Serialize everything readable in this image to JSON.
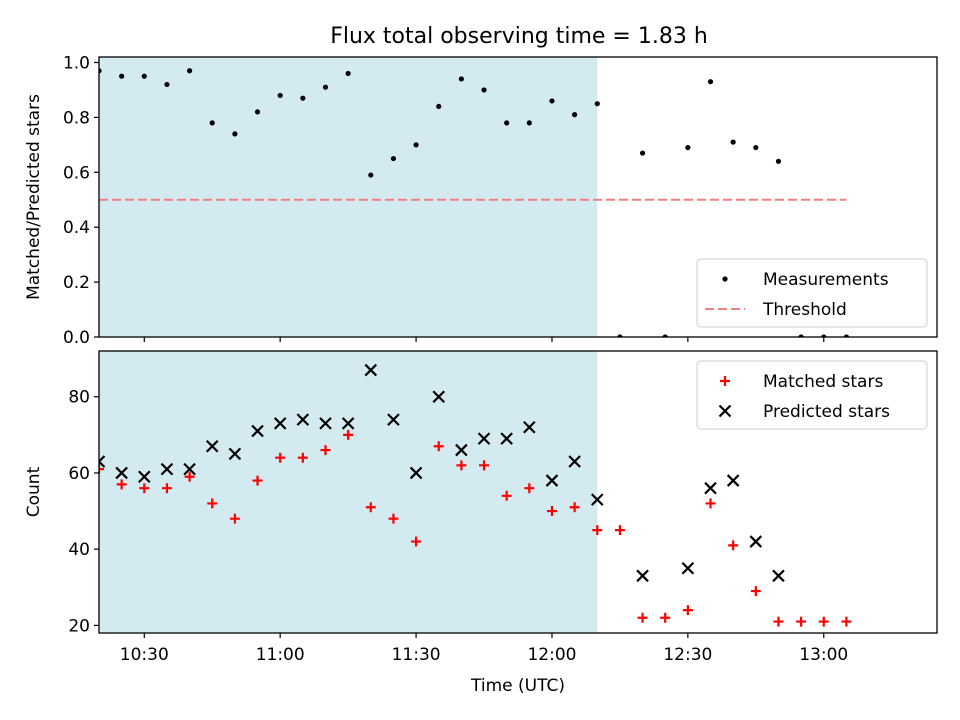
{
  "figure": {
    "title": "Flux total observing time = 1.83 h",
    "shade_color": "#d4eaf1"
  },
  "chart_data": [
    {
      "type": "scatter",
      "panel": "top",
      "ylabel": "Matched/Predicted stars",
      "xlabel": "",
      "xlim": [
        "10:20",
        "13:25"
      ],
      "ylim": [
        0,
        1.02
      ],
      "yticks": [
        0.0,
        0.2,
        0.4,
        0.6,
        0.8,
        1.0
      ],
      "ytick_labels": [
        "0.0",
        "0.2",
        "0.4",
        "0.6",
        "0.8",
        "1.0"
      ],
      "xticks": [
        "10:30",
        "11:00",
        "11:30",
        "12:00",
        "12:30",
        "13:00"
      ],
      "grid": false,
      "legend": "bottom-right",
      "shaded_span": [
        "10:20",
        "12:10"
      ],
      "series": [
        {
          "name": "Measurements",
          "marker": "dot",
          "color": "#000000",
          "points": [
            [
              "10:20",
              0.97
            ],
            [
              "10:25",
              0.95
            ],
            [
              "10:30",
              0.95
            ],
            [
              "10:35",
              0.92
            ],
            [
              "10:40",
              0.97
            ],
            [
              "10:45",
              0.78
            ],
            [
              "10:50",
              0.74
            ],
            [
              "10:55",
              0.82
            ],
            [
              "11:00",
              0.88
            ],
            [
              "11:05",
              0.87
            ],
            [
              "11:10",
              0.91
            ],
            [
              "11:15",
              0.96
            ],
            [
              "11:20",
              0.59
            ],
            [
              "11:25",
              0.65
            ],
            [
              "11:30",
              0.7
            ],
            [
              "11:35",
              0.84
            ],
            [
              "11:40",
              0.94
            ],
            [
              "11:45",
              0.9
            ],
            [
              "11:50",
              0.78
            ],
            [
              "11:55",
              0.78
            ],
            [
              "12:00",
              0.86
            ],
            [
              "12:05",
              0.81
            ],
            [
              "12:10",
              0.85
            ],
            [
              "12:15",
              0.0
            ],
            [
              "12:20",
              0.67
            ],
            [
              "12:25",
              0.0
            ],
            [
              "12:30",
              0.69
            ],
            [
              "12:35",
              0.93
            ],
            [
              "12:40",
              0.71
            ],
            [
              "12:45",
              0.69
            ],
            [
              "12:50",
              0.64
            ],
            [
              "12:55",
              0.0
            ],
            [
              "13:00",
              0.0
            ],
            [
              "13:05",
              0.0
            ]
          ]
        },
        {
          "name": "Threshold",
          "type": "line",
          "style": "dashed",
          "color": "#f08080",
          "points": [
            [
              "10:20",
              0.5
            ],
            [
              "13:05",
              0.5
            ]
          ]
        }
      ]
    },
    {
      "type": "scatter",
      "panel": "bottom",
      "xlabel": "Time (UTC)",
      "ylabel": "Count",
      "xlim": [
        "10:20",
        "13:25"
      ],
      "ylim": [
        18,
        92
      ],
      "yticks": [
        20,
        40,
        60,
        80
      ],
      "ytick_labels": [
        "20",
        "40",
        "60",
        "80"
      ],
      "xticks": [
        "10:30",
        "11:00",
        "11:30",
        "12:00",
        "12:30",
        "13:00"
      ],
      "xtick_labels": [
        "10:30",
        "11:00",
        "11:30",
        "12:00",
        "12:30",
        "13:00"
      ],
      "grid": false,
      "legend": "top-right",
      "shaded_span": [
        "10:20",
        "12:10"
      ],
      "series": [
        {
          "name": "Matched stars",
          "marker": "plus",
          "color": "#ff0000",
          "points": [
            [
              "10:20",
              61
            ],
            [
              "10:25",
              57
            ],
            [
              "10:30",
              56
            ],
            [
              "10:35",
              56
            ],
            [
              "10:40",
              59
            ],
            [
              "10:45",
              52
            ],
            [
              "10:50",
              48
            ],
            [
              "10:55",
              58
            ],
            [
              "11:00",
              64
            ],
            [
              "11:05",
              64
            ],
            [
              "11:10",
              66
            ],
            [
              "11:15",
              70
            ],
            [
              "11:20",
              51
            ],
            [
              "11:25",
              48
            ],
            [
              "11:30",
              42
            ],
            [
              "11:35",
              67
            ],
            [
              "11:40",
              62
            ],
            [
              "11:45",
              62
            ],
            [
              "11:50",
              54
            ],
            [
              "11:55",
              56
            ],
            [
              "12:00",
              50
            ],
            [
              "12:05",
              51
            ],
            [
              "12:10",
              45
            ],
            [
              "12:15",
              45
            ],
            [
              "12:20",
              22
            ],
            [
              "12:25",
              22
            ],
            [
              "12:30",
              24
            ],
            [
              "12:35",
              52
            ],
            [
              "12:40",
              41
            ],
            [
              "12:45",
              29
            ],
            [
              "12:50",
              21
            ],
            [
              "12:55",
              21
            ],
            [
              "13:00",
              21
            ],
            [
              "13:05",
              21
            ]
          ]
        },
        {
          "name": "Predicted stars",
          "marker": "x",
          "color": "#000000",
          "points": [
            [
              "10:20",
              63
            ],
            [
              "10:25",
              60
            ],
            [
              "10:30",
              59
            ],
            [
              "10:35",
              61
            ],
            [
              "10:40",
              61
            ],
            [
              "10:45",
              67
            ],
            [
              "10:50",
              65
            ],
            [
              "10:55",
              71
            ],
            [
              "11:00",
              73
            ],
            [
              "11:05",
              74
            ],
            [
              "11:10",
              73
            ],
            [
              "11:15",
              73
            ],
            [
              "11:20",
              87
            ],
            [
              "11:25",
              74
            ],
            [
              "11:30",
              60
            ],
            [
              "11:35",
              80
            ],
            [
              "11:40",
              66
            ],
            [
              "11:45",
              69
            ],
            [
              "11:50",
              69
            ],
            [
              "11:55",
              72
            ],
            [
              "12:00",
              58
            ],
            [
              "12:05",
              63
            ],
            [
              "12:10",
              53
            ],
            [
              "12:20",
              33
            ],
            [
              "12:30",
              35
            ],
            [
              "12:35",
              56
            ],
            [
              "12:40",
              58
            ],
            [
              "12:45",
              42
            ],
            [
              "12:50",
              33
            ]
          ]
        }
      ]
    }
  ]
}
